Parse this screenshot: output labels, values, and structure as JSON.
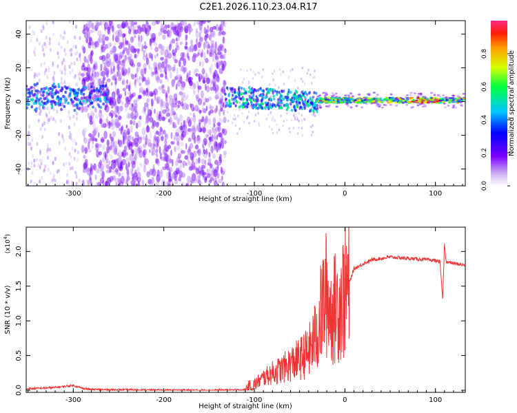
{
  "title": "C2E1.2026.110.23.04.R17",
  "chart_data": [
    {
      "type": "heatmap",
      "name": "spectrogram",
      "xlabel": "Height of straight line (km)",
      "ylabel": "Frequency (Hz)",
      "xlim": [
        -352,
        133
      ],
      "ylim": [
        -50,
        48
      ],
      "xticks": [
        -300,
        -200,
        -100,
        0,
        100
      ],
      "yticks": [
        -40,
        -20,
        0,
        20,
        40
      ],
      "colorbar": {
        "label": "Normalized spectral amplitude",
        "range": [
          0,
          1
        ],
        "ticks": [
          0.0,
          0.2,
          0.4,
          0.6,
          0.8
        ]
      },
      "regions": [
        {
          "from": -352,
          "to": -290,
          "note": "faint scattered noise, strong band near 0 Hz"
        },
        {
          "from": -290,
          "to": -132,
          "note": "broadband scattered noise across all frequencies"
        },
        {
          "from": -132,
          "to": -30,
          "note": "broadened band near 0-5 Hz"
        },
        {
          "from": -30,
          "to": 133,
          "note": "narrow strong line near 0-2 Hz"
        }
      ]
    },
    {
      "type": "line",
      "name": "snr",
      "xlabel": "Height of straight line (km)",
      "ylabel": "SNR (10 * v/v)",
      "yscale_label": "(x10",
      "yscale_exp": "4",
      "xlim": [
        -352,
        133
      ],
      "ylim": [
        -0.03,
        2.35
      ],
      "xticks": [
        -300,
        -200,
        -100,
        0,
        100
      ],
      "yticks": [
        0.0,
        0.5,
        1.0,
        1.5,
        2.0
      ],
      "series": [
        {
          "name": "SNR",
          "color": "#ee3333",
          "x": [
            -352,
            -320,
            -300,
            -290,
            -280,
            -200,
            -150,
            -110,
            -100,
            -90,
            -80,
            -70,
            -60,
            -50,
            -40,
            -30,
            -25,
            -20,
            -15,
            -10,
            -5,
            0,
            5,
            10,
            20,
            30,
            40,
            50,
            60,
            70,
            80,
            90,
            100,
            105,
            108,
            110,
            112,
            115,
            120,
            133
          ],
          "y": [
            0.02,
            0.04,
            0.07,
            0.03,
            0.01,
            0.0,
            0.0,
            0.005,
            0.08,
            0.18,
            0.25,
            0.3,
            0.38,
            0.45,
            0.55,
            0.85,
            1.2,
            1.4,
            1.1,
            1.2,
            1.3,
            1.4,
            1.55,
            1.75,
            1.82,
            1.88,
            1.9,
            1.92,
            1.91,
            1.9,
            1.89,
            1.88,
            1.87,
            1.85,
            1.3,
            2.1,
            1.85,
            1.84,
            1.83,
            1.8
          ]
        }
      ]
    }
  ]
}
